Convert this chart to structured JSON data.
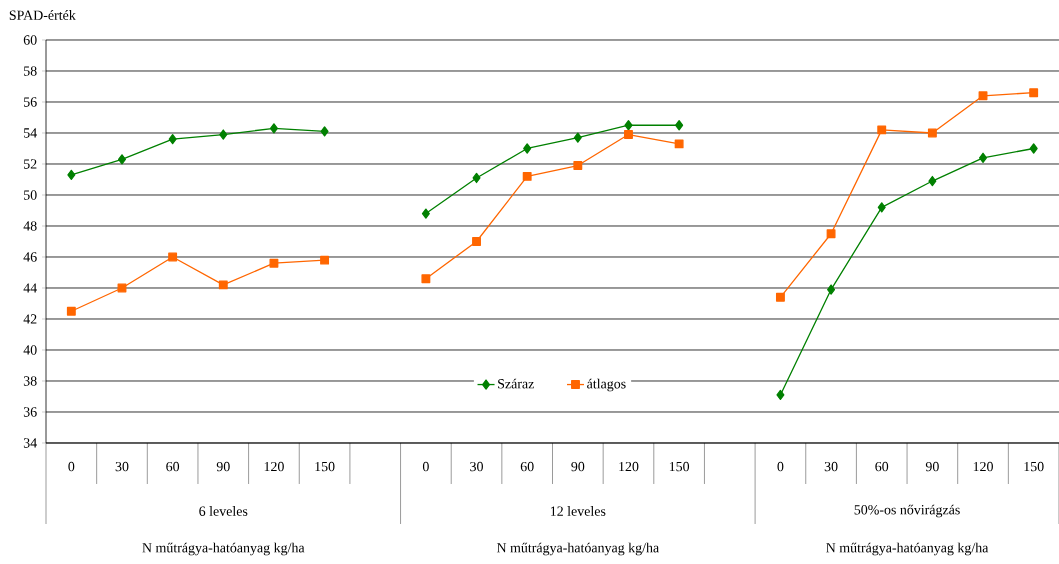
{
  "chart_data": {
    "type": "line",
    "ylabel": "SPAD-érték",
    "annotations": [
      "6 leveles",
      "12 leveles",
      "50%-os nővirágzás",
      "N műtrágya-hatóanyag kg/ha",
      "N műtrágya-hatóanyag kg/ha",
      "N műtrágya-hatóanyag kg/ha"
    ],
    "categories": [
      "0",
      "30",
      "60",
      "90",
      "120",
      "150",
      null,
      "0",
      "30",
      "60",
      "90",
      "120",
      "150",
      null,
      "0",
      "30",
      "60",
      "90",
      "120",
      "150"
    ],
    "series": [
      {
        "name": "Száraz",
        "color": "#008000",
        "marker": "diamond",
        "values": [
          51.3,
          52.3,
          53.6,
          53.9,
          54.3,
          54.1,
          null,
          48.8,
          51.1,
          53.0,
          53.7,
          54.5,
          54.5,
          null,
          37.1,
          43.9,
          49.2,
          50.9,
          52.4,
          53.0
        ]
      },
      {
        "name": "átlagos",
        "color": "#ff6600",
        "marker": "square",
        "values": [
          42.5,
          44.0,
          46.0,
          44.2,
          45.6,
          45.8,
          null,
          44.6,
          47.0,
          51.2,
          51.9,
          53.9,
          53.3,
          null,
          43.4,
          47.5,
          54.2,
          54.0,
          56.4,
          56.6
        ]
      }
    ],
    "ylim": [
      34,
      60
    ],
    "yticks": [
      34,
      36,
      38,
      40,
      42,
      44,
      46,
      48,
      50,
      52,
      54,
      56,
      58,
      60
    ],
    "grid": "y",
    "legend": "bottom"
  }
}
